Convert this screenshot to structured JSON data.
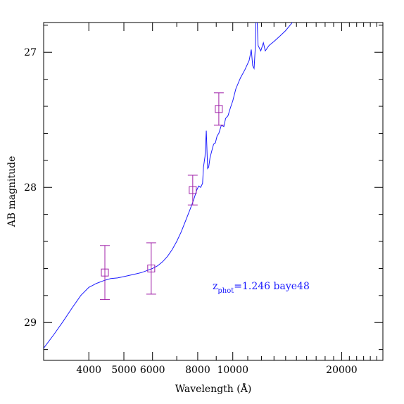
{
  "chart_data": {
    "type": "line",
    "title": "",
    "xlabel": "Wavelength (Å)",
    "ylabel": "AB magnitude",
    "x_scale": "log",
    "xlim": [
      3000,
      26000
    ],
    "ylim": [
      29.28,
      26.78
    ],
    "y_inverted": true,
    "grid": false,
    "x_ticks": [
      4000,
      5000,
      6000,
      8000,
      10000,
      20000
    ],
    "x_tick_labels": [
      "4000",
      "5000",
      "6000",
      "8000",
      "10000",
      "20000"
    ],
    "y_ticks": [
      27,
      28,
      29
    ],
    "y_tick_labels": [
      "27",
      "28",
      "29"
    ],
    "y_minor_step": 0.2,
    "series": [
      {
        "kind": "model",
        "color": "#1a1aff",
        "points": [
          [
            3000,
            29.19
          ],
          [
            3200,
            29.09
          ],
          [
            3400,
            28.99
          ],
          [
            3600,
            28.89
          ],
          [
            3800,
            28.8
          ],
          [
            4000,
            28.74
          ],
          [
            4200,
            28.71
          ],
          [
            4400,
            28.69
          ],
          [
            4600,
            28.675
          ],
          [
            4800,
            28.67
          ],
          [
            5000,
            28.66
          ],
          [
            5200,
            28.65
          ],
          [
            5400,
            28.64
          ],
          [
            5600,
            28.63
          ],
          [
            5800,
            28.615
          ],
          [
            6000,
            28.6
          ],
          [
            6200,
            28.58
          ],
          [
            6400,
            28.55
          ],
          [
            6600,
            28.51
          ],
          [
            6800,
            28.46
          ],
          [
            7000,
            28.4
          ],
          [
            7200,
            28.33
          ],
          [
            7400,
            28.25
          ],
          [
            7600,
            28.17
          ],
          [
            7800,
            28.09
          ],
          [
            7950,
            28.02
          ],
          [
            8050,
            27.99
          ],
          [
            8150,
            28.0
          ],
          [
            8250,
            27.97
          ],
          [
            8300,
            27.85
          ],
          [
            8380,
            27.77
          ],
          [
            8450,
            27.58
          ],
          [
            8520,
            27.86
          ],
          [
            8580,
            27.85
          ],
          [
            8650,
            27.78
          ],
          [
            8750,
            27.73
          ],
          [
            8850,
            27.68
          ],
          [
            8950,
            27.67
          ],
          [
            9050,
            27.62
          ],
          [
            9150,
            27.6
          ],
          [
            9300,
            27.54
          ],
          [
            9450,
            27.55
          ],
          [
            9550,
            27.49
          ],
          [
            9700,
            27.47
          ],
          [
            9850,
            27.41
          ],
          [
            10000,
            27.36
          ],
          [
            10200,
            27.27
          ],
          [
            10500,
            27.19
          ],
          [
            10800,
            27.13
          ],
          [
            11100,
            27.06
          ],
          [
            11250,
            26.98
          ],
          [
            11350,
            27.1
          ],
          [
            11450,
            27.12
          ],
          [
            11550,
            26.95
          ],
          [
            11620,
            26.62
          ],
          [
            11750,
            26.95
          ],
          [
            11950,
            26.99
          ],
          [
            12150,
            26.93
          ],
          [
            12300,
            26.99
          ],
          [
            12600,
            26.95
          ],
          [
            13000,
            26.92
          ],
          [
            13500,
            26.88
          ],
          [
            14000,
            26.84
          ],
          [
            14500,
            26.79
          ],
          [
            15000,
            26.74
          ]
        ]
      },
      {
        "kind": "photometry",
        "color": "#a020a8",
        "marker": "open-square",
        "points": [
          {
            "x": 4430,
            "y": 28.63,
            "err": 0.2
          },
          {
            "x": 5950,
            "y": 28.6,
            "err": 0.19
          },
          {
            "x": 7750,
            "y": 28.02,
            "err": 0.11
          },
          {
            "x": 9150,
            "y": 27.42,
            "err": 0.12
          }
        ]
      }
    ],
    "annotation": {
      "prefix": "z",
      "subscript": "phot",
      "text": "=1.246 baye48"
    }
  }
}
